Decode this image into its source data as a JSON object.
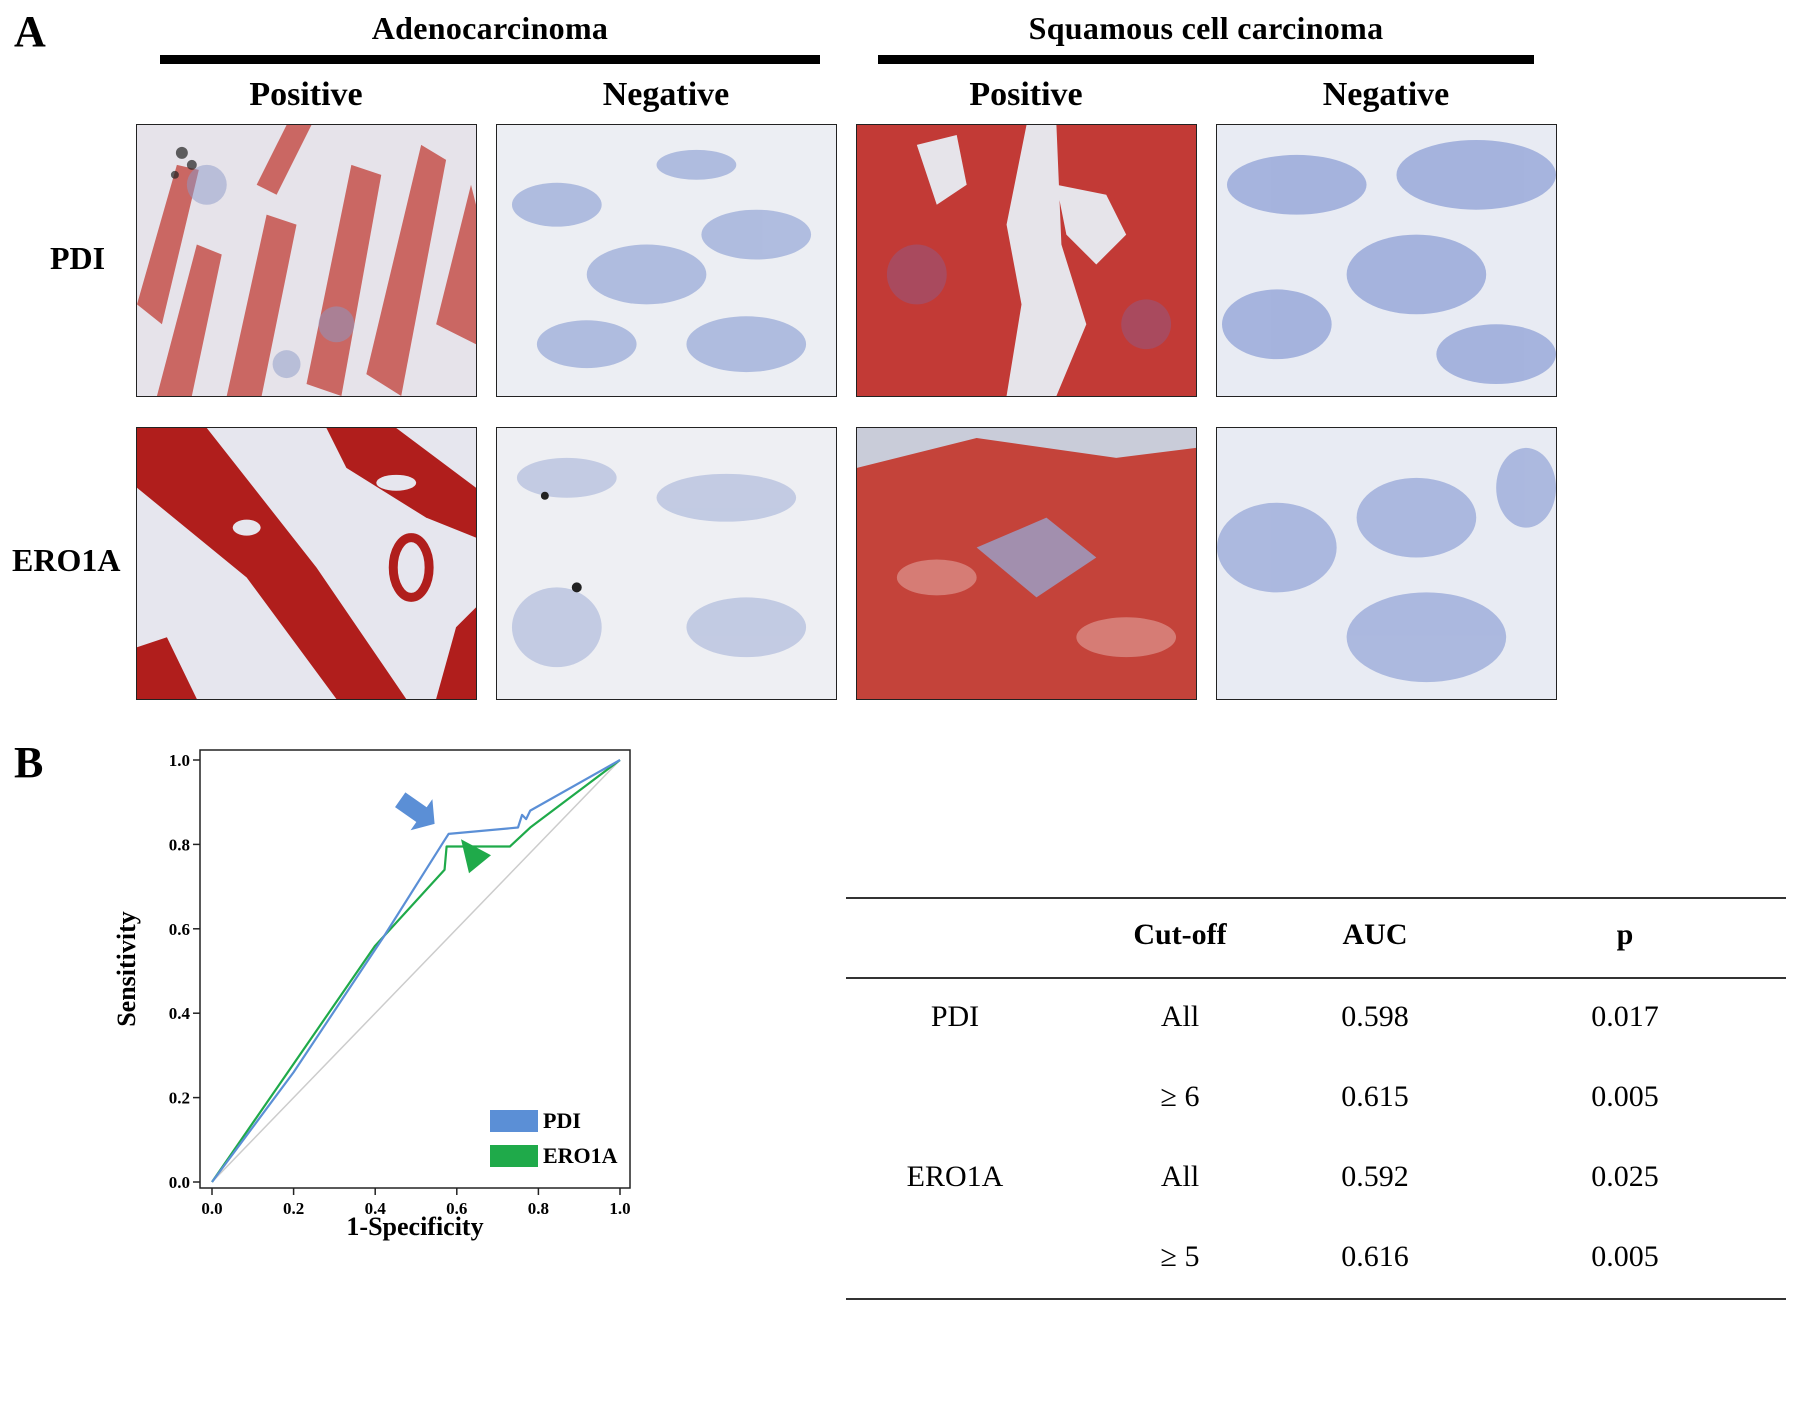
{
  "panel_a": {
    "letter": "A",
    "groups": [
      {
        "title": "Adenocarcinoma"
      },
      {
        "title": "Squamous cell carcinoma"
      }
    ],
    "columns": [
      "Positive",
      "Negative",
      "Positive",
      "Negative"
    ],
    "rows": [
      "PDI",
      "ERO1A"
    ],
    "images": [
      {
        "row": "PDI",
        "group": "Adenocarcinoma",
        "staining": "Positive",
        "tone": "red-glandular"
      },
      {
        "row": "PDI",
        "group": "Adenocarcinoma",
        "staining": "Negative",
        "tone": "blue"
      },
      {
        "row": "PDI",
        "group": "Squamous cell carcinoma",
        "staining": "Positive",
        "tone": "red-solid"
      },
      {
        "row": "PDI",
        "group": "Squamous cell carcinoma",
        "staining": "Negative",
        "tone": "blue"
      },
      {
        "row": "ERO1A",
        "group": "Adenocarcinoma",
        "staining": "Positive",
        "tone": "dark-red-glandular"
      },
      {
        "row": "ERO1A",
        "group": "Adenocarcinoma",
        "staining": "Negative",
        "tone": "pale-blue"
      },
      {
        "row": "ERO1A",
        "group": "Squamous cell carcinoma",
        "staining": "Positive",
        "tone": "red-diffuse"
      },
      {
        "row": "ERO1A",
        "group": "Squamous cell carcinoma",
        "staining": "Negative",
        "tone": "blue"
      }
    ],
    "colors": {
      "stain_red": "#c0302c",
      "counterstain_blue": "#6f86c9",
      "background": "#eef0f5"
    }
  },
  "panel_b": {
    "letter": "B",
    "chart_data": {
      "type": "line",
      "xlabel": "1-Specificity",
      "ylabel": "Sensitivity",
      "xlim": [
        0,
        1
      ],
      "ylim": [
        0,
        1
      ],
      "xticks": [
        "0.0",
        "0.2",
        "0.4",
        "0.6",
        "0.8",
        "1.0"
      ],
      "yticks": [
        "0.0",
        "0.2",
        "0.4",
        "0.6",
        "0.8",
        "1.0"
      ],
      "legend_position": "bottom-right",
      "reference_line": {
        "points": [
          [
            0,
            0
          ],
          [
            1,
            1
          ]
        ],
        "color": "#cccccc"
      },
      "series": [
        {
          "name": "PDI",
          "color": "#5b8fd6",
          "points": [
            [
              0,
              0
            ],
            [
              0.2,
              0.26
            ],
            [
              0.42,
              0.58
            ],
            [
              0.57,
              0.81
            ],
            [
              0.58,
              0.825
            ],
            [
              0.75,
              0.84
            ],
            [
              0.76,
              0.87
            ],
            [
              0.77,
              0.86
            ],
            [
              0.78,
              0.88
            ],
            [
              1.0,
              1.0
            ]
          ]
        },
        {
          "name": "ERO1A",
          "color": "#1faa4a",
          "points": [
            [
              0,
              0
            ],
            [
              0.2,
              0.28
            ],
            [
              0.4,
              0.56
            ],
            [
              0.57,
              0.74
            ],
            [
              0.575,
              0.795
            ],
            [
              0.73,
              0.795
            ],
            [
              0.78,
              0.84
            ],
            [
              1.0,
              1.0
            ]
          ]
        }
      ],
      "annotations": [
        {
          "type": "arrow",
          "target": "PDI",
          "color": "#5b8fd6"
        },
        {
          "type": "arrowhead",
          "target": "ERO1A",
          "color": "#1faa4a"
        }
      ]
    },
    "table": {
      "headers": [
        "",
        "Cut-off",
        "AUC",
        "p"
      ],
      "rows": [
        {
          "marker": "PDI",
          "cutoff": "All",
          "auc": "0.598",
          "p": "0.017"
        },
        {
          "marker": "",
          "cutoff": "≥ 6",
          "auc": "0.615",
          "p": "0.005"
        },
        {
          "marker": "ERO1A",
          "cutoff": "All",
          "auc": "0.592",
          "p": "0.025"
        },
        {
          "marker": "",
          "cutoff": "≥ 5",
          "auc": "0.616",
          "p": "0.005"
        }
      ]
    }
  }
}
